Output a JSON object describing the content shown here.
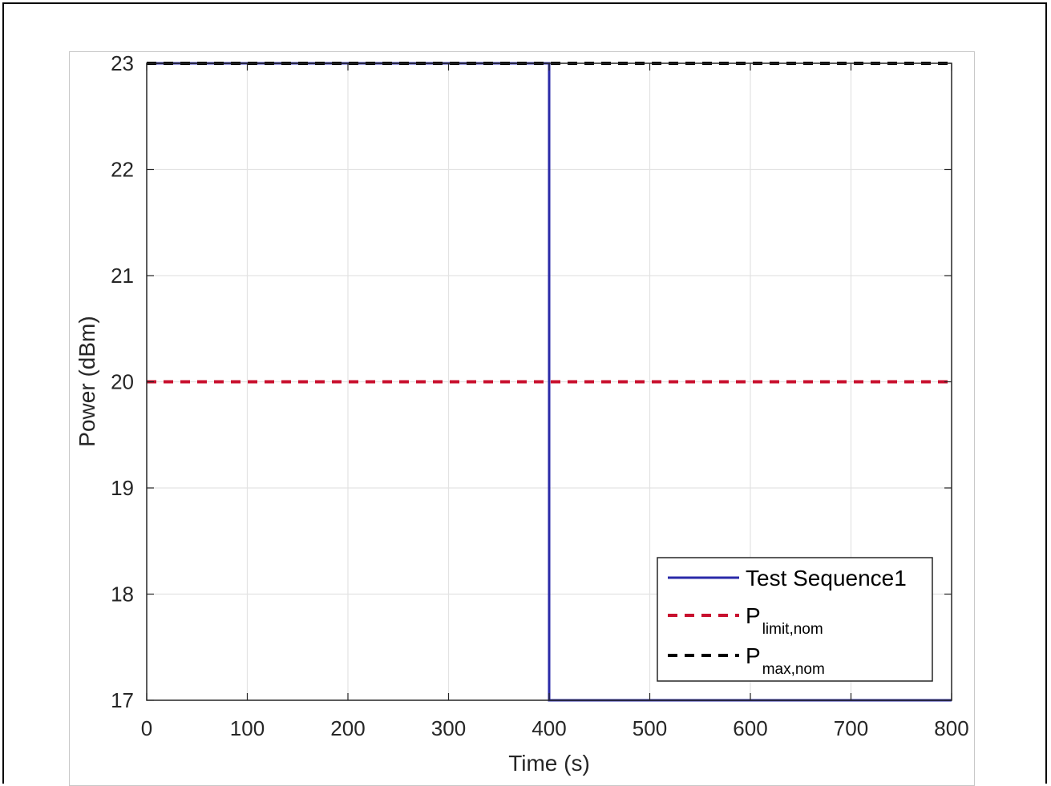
{
  "chart_data": {
    "type": "line",
    "title": "",
    "xlabel": "Time (s)",
    "ylabel": "Power (dBm)",
    "xlim": [
      0,
      800
    ],
    "ylim": [
      17,
      23
    ],
    "xticks": [
      "0",
      "100",
      "200",
      "300",
      "400",
      "500",
      "600",
      "700",
      "800"
    ],
    "yticks": [
      "17",
      "18",
      "19",
      "20",
      "21",
      "22",
      "23"
    ],
    "grid": true,
    "legend_position": "bottom-right",
    "series": [
      {
        "name": "Test Sequence1",
        "style": "solid",
        "color": "#2a2aa8",
        "x": [
          0,
          400,
          400,
          800
        ],
        "y": [
          23,
          23,
          17,
          17
        ]
      },
      {
        "name": "P",
        "name_subscript": "limit,nom",
        "style": "dashed",
        "color": "#c8102e",
        "x": [
          0,
          800
        ],
        "y": [
          20,
          20
        ]
      },
      {
        "name": "P",
        "name_subscript": "max,nom",
        "style": "dashed",
        "color": "#000000",
        "x": [
          0,
          800
        ],
        "y": [
          23,
          23
        ]
      }
    ]
  }
}
